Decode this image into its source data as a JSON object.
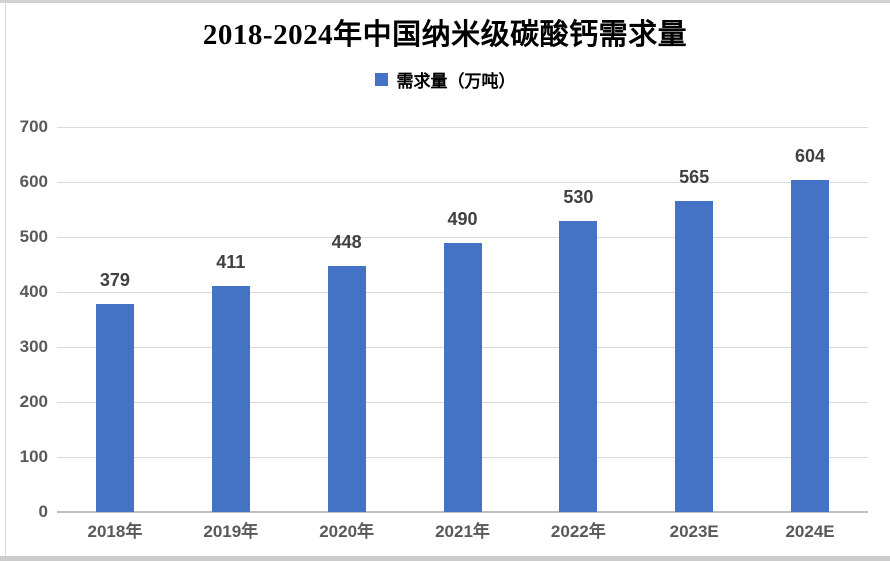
{
  "chart_data": {
    "type": "bar",
    "title": "2018-2024年中国纳米级碳酸钙需求量",
    "legend": [
      "需求量（万吨）"
    ],
    "categories": [
      "2018年",
      "2019年",
      "2020年",
      "2021年",
      "2022年",
      "2023E",
      "2024E"
    ],
    "values": [
      379,
      411,
      448,
      490,
      530,
      565,
      604
    ],
    "series": [
      {
        "name": "需求量（万吨）",
        "values": [
          379,
          411,
          448,
          490,
          530,
          565,
          604
        ]
      }
    ],
    "xlabel": "",
    "ylabel": "",
    "ylim": [
      0,
      700
    ],
    "yticks": [
      0,
      100,
      200,
      300,
      400,
      500,
      600,
      700
    ],
    "grid": true,
    "legend_position": "top",
    "data_labels_shown": true,
    "colors": {
      "bar": "#4472C4",
      "gridline": "#D9D9D9",
      "axis_line": "#BFBFBF",
      "axis_label": "#595959",
      "value_label": "#404040",
      "title": "#000000"
    }
  }
}
